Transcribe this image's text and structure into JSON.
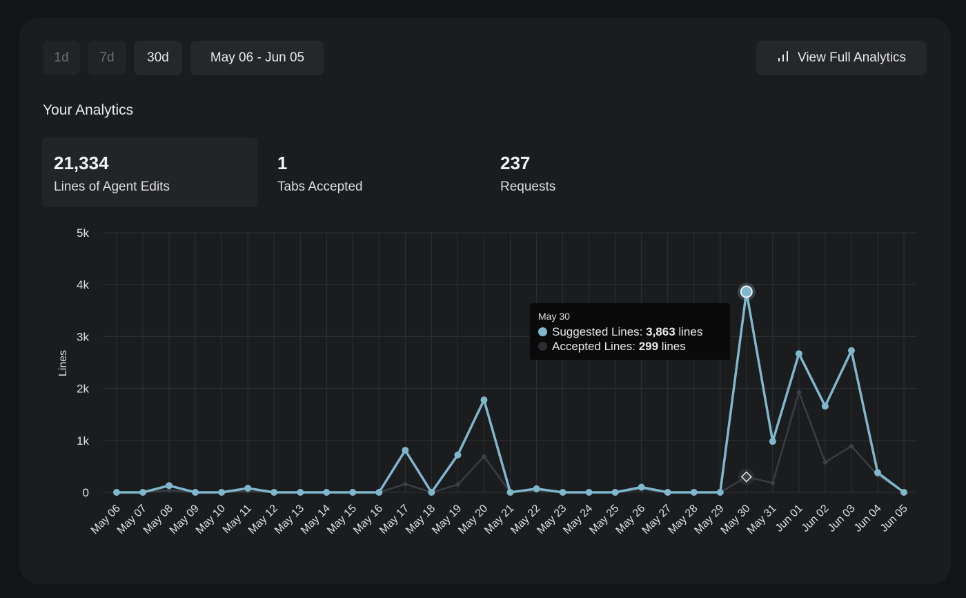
{
  "toolbar": {
    "ranges": [
      "1d",
      "7d",
      "30d"
    ],
    "active_range": "30d",
    "date_range": "May 06 - Jun 05",
    "analytics_button": "View Full Analytics"
  },
  "section_title": "Your Analytics",
  "stats": [
    {
      "value": "21,334",
      "label": "Lines of Agent Edits"
    },
    {
      "value": "1",
      "label": "Tabs Accepted"
    },
    {
      "value": "237",
      "label": "Requests"
    }
  ],
  "tooltip": {
    "date": "May 30",
    "suggested_label": "Suggested Lines: ",
    "suggested_value": "3,863",
    "accepted_label": "Accepted Lines: ",
    "accepted_value": "299",
    "unit": " lines"
  },
  "colors": {
    "suggested": "#7fb7cd",
    "accepted": "#3a3d44",
    "grid": "#2e3033",
    "card": "#1b1c1e"
  },
  "chart_data": {
    "type": "line",
    "ylabel": "Lines",
    "xlabel": "",
    "ylim": [
      0,
      5000
    ],
    "yticks": [
      0,
      1000,
      2000,
      3000,
      4000,
      5000
    ],
    "ytick_labels": [
      "0",
      "1k",
      "2k",
      "3k",
      "4k",
      "5k"
    ],
    "grid": true,
    "categories": [
      "May 06",
      "May 07",
      "May 08",
      "May 09",
      "May 10",
      "May 11",
      "May 12",
      "May 13",
      "May 14",
      "May 15",
      "May 16",
      "May 17",
      "May 18",
      "May 19",
      "May 20",
      "May 21",
      "May 22",
      "May 23",
      "May 24",
      "May 25",
      "May 26",
      "May 27",
      "May 28",
      "May 29",
      "May 30",
      "May 31",
      "Jun 01",
      "Jun 02",
      "Jun 03",
      "Jun 04",
      "Jun 05"
    ],
    "series": [
      {
        "name": "Suggested Lines",
        "values": [
          0,
          0,
          130,
          0,
          0,
          80,
          0,
          0,
          0,
          0,
          0,
          810,
          0,
          720,
          1780,
          0,
          70,
          0,
          0,
          0,
          100,
          0,
          0,
          0,
          3863,
          980,
          2670,
          1660,
          2730,
          380,
          0
        ]
      },
      {
        "name": "Accepted Lines",
        "values": [
          0,
          0,
          40,
          0,
          0,
          20,
          0,
          0,
          0,
          0,
          0,
          160,
          0,
          150,
          690,
          0,
          30,
          0,
          0,
          0,
          60,
          0,
          0,
          0,
          299,
          180,
          1930,
          580,
          890,
          330,
          0
        ]
      }
    ],
    "highlight_index": 24
  }
}
